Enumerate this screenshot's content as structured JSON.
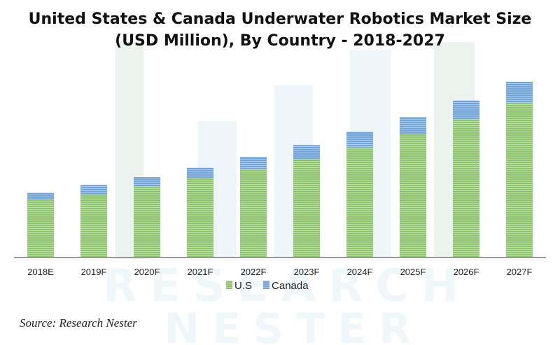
{
  "chart_data": {
    "type": "bar",
    "stacked": true,
    "title_line1": "United States & Canada Underwater Robotics Market Size",
    "title_line2": "(USD Million), By Country - 2018-2027",
    "categories": [
      "2018E",
      "2019F",
      "2020F",
      "2021F",
      "2022F",
      "2023F",
      "2024F",
      "2025F",
      "2026F",
      "2027F"
    ],
    "series": [
      {
        "name": "U.S",
        "color": "#8cc56a",
        "values": [
          73,
          80,
          90,
          101,
          112,
          125,
          140,
          157,
          176,
          197
        ]
      },
      {
        "name": "Canada",
        "color": "#6fa3dc",
        "values": [
          9,
          12,
          12,
          13,
          16,
          18,
          20,
          22,
          24,
          27
        ]
      }
    ],
    "ylim": [
      0,
      230
    ],
    "grid": false,
    "legend": "bottom",
    "note": "no y-axis shown; values are relative estimates"
  },
  "source": "Source: Research Nester",
  "watermark": "RESEARCH NESTER"
}
